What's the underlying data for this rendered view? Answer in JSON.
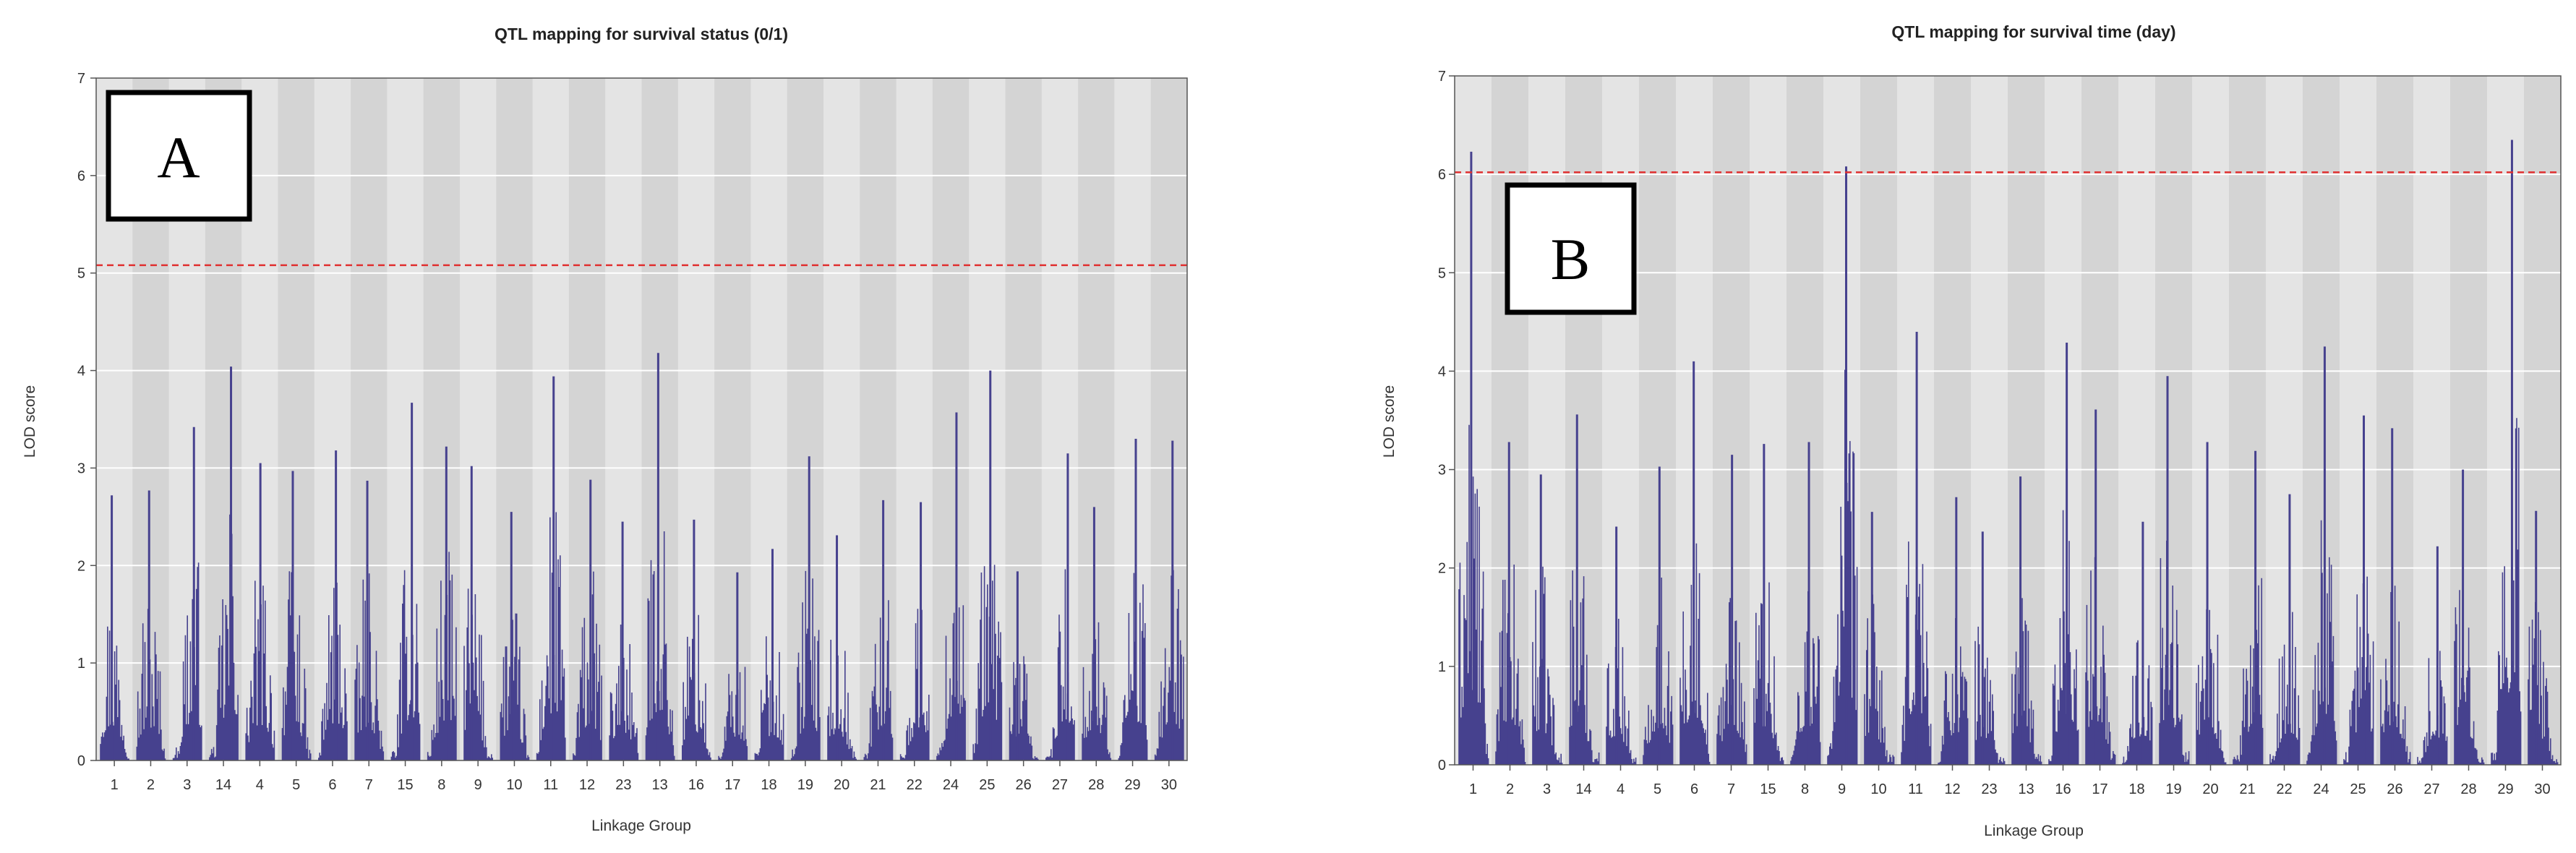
{
  "chart_data": [
    {
      "type": "bar",
      "panel_label": "A",
      "title": "QTL mapping for survival status (0/1)",
      "xlabel": "Linkage Group",
      "ylabel": "LOD score",
      "ylim": [
        0,
        7
      ],
      "yticks": [
        "0",
        "1",
        "2",
        "3",
        "4",
        "5",
        "6",
        "7"
      ],
      "threshold": 5.08,
      "threshold_color": "#e03030",
      "bar_color": "#46418e",
      "categories": [
        "1",
        "2",
        "3",
        "14",
        "4",
        "5",
        "6",
        "7",
        "15",
        "8",
        "9",
        "10",
        "11",
        "12",
        "23",
        "13",
        "16",
        "17",
        "18",
        "19",
        "20",
        "21",
        "22",
        "24",
        "25",
        "26",
        "27",
        "28",
        "29",
        "30"
      ],
      "values": [
        2.72,
        2.77,
        3.42,
        4.04,
        3.05,
        2.97,
        3.18,
        2.87,
        3.67,
        3.22,
        3.02,
        2.55,
        3.94,
        2.88,
        2.45,
        4.18,
        2.47,
        1.93,
        2.17,
        3.12,
        2.31,
        2.67,
        2.65,
        3.57,
        4.0,
        1.94,
        3.15,
        2.6,
        3.3,
        3.28
      ]
    },
    {
      "type": "bar",
      "panel_label": "B",
      "title": "QTL mapping for survival time (day)",
      "xlabel": "Linkage Group",
      "ylabel": "LOD score",
      "ylim": [
        0,
        7
      ],
      "yticks": [
        "0",
        "1",
        "2",
        "3",
        "4",
        "5",
        "6",
        "7"
      ],
      "threshold": 6.02,
      "threshold_color": "#e03030",
      "bar_color": "#46418e",
      "categories": [
        "1",
        "2",
        "3",
        "14",
        "4",
        "5",
        "6",
        "7",
        "15",
        "8",
        "9",
        "10",
        "11",
        "12",
        "23",
        "13",
        "16",
        "17",
        "18",
        "19",
        "20",
        "21",
        "22",
        "24",
        "25",
        "26",
        "27",
        "28",
        "29",
        "30"
      ],
      "values": [
        6.23,
        3.28,
        2.95,
        3.56,
        2.42,
        3.03,
        4.1,
        3.15,
        3.26,
        3.28,
        6.08,
        2.57,
        4.4,
        2.72,
        2.37,
        2.93,
        4.29,
        3.61,
        2.47,
        3.95,
        3.28,
        3.19,
        2.75,
        4.25,
        3.55,
        3.42,
        2.22,
        3.0,
        6.35,
        2.58
      ]
    }
  ]
}
